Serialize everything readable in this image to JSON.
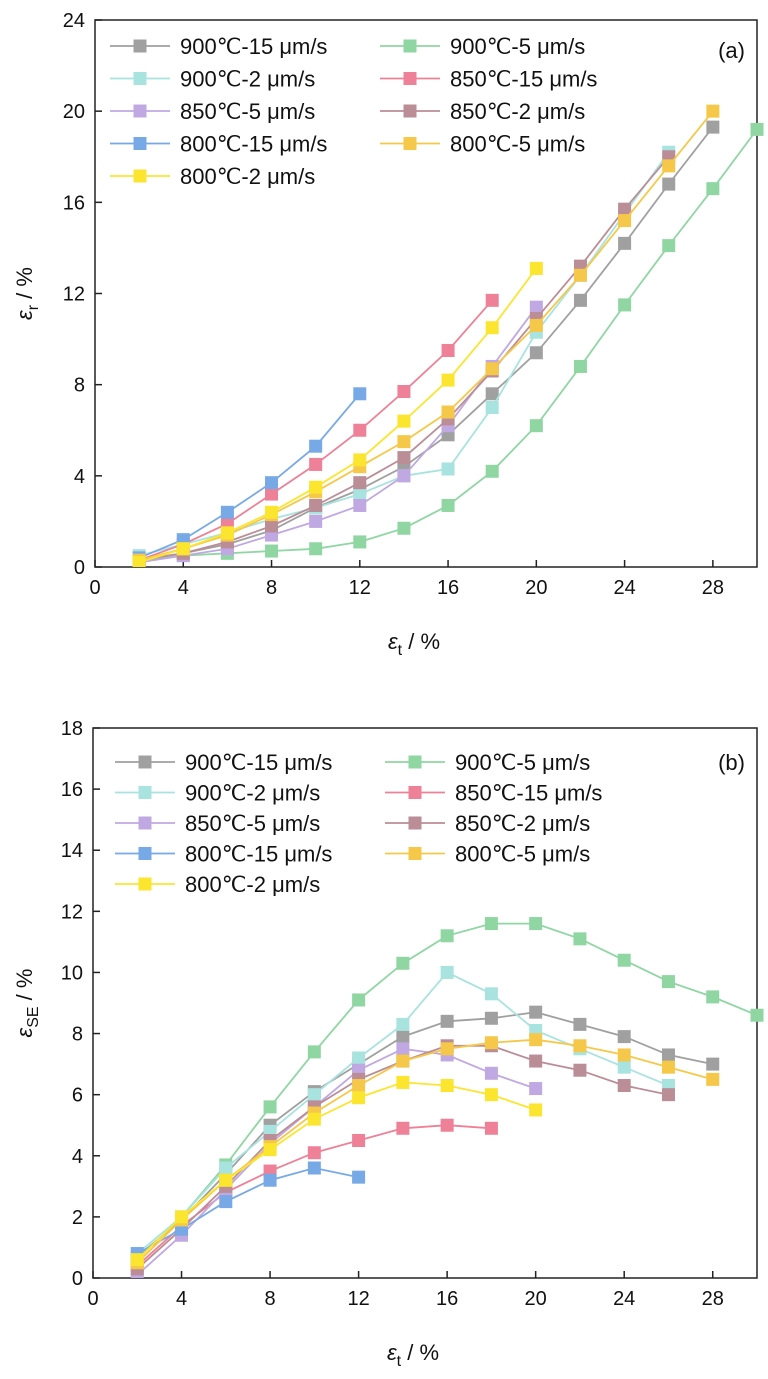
{
  "series_names": [
    "900℃-15 μm/s",
    "900℃-5 μm/s",
    "900℃-2 μm/s",
    "850℃-15 μm/s",
    "850℃-5 μm/s",
    "850℃-2 μm/s",
    "800℃-15 μm/s",
    "800℃-5 μm/s",
    "800℃-2 μm/s"
  ],
  "chart_data": [
    {
      "type": "line",
      "panel_label": "(a)",
      "xlabel": "εt / %",
      "ylabel": "εr / %",
      "xlim": [
        0,
        30
      ],
      "ylim": [
        0,
        24
      ],
      "xticks": [
        0,
        4,
        8,
        12,
        16,
        20,
        24,
        28
      ],
      "yticks": [
        0,
        4,
        8,
        12,
        16,
        20,
        24
      ],
      "grid": false,
      "legend_position": "top, two columns",
      "series": [
        {
          "name": "900℃-15 μm/s",
          "color": "#a0a0a0",
          "x": [
            2,
            4,
            6,
            8,
            10,
            12,
            14,
            16,
            18,
            20,
            22,
            24,
            26,
            28
          ],
          "y": [
            0.3,
            0.6,
            1.0,
            1.6,
            2.6,
            3.4,
            4.4,
            5.8,
            7.6,
            9.4,
            11.7,
            14.2,
            16.8,
            19.3
          ]
        },
        {
          "name": "900℃-5 μm/s",
          "color": "#8fd6a3",
          "x": [
            2,
            4,
            6,
            8,
            10,
            12,
            14,
            16,
            18,
            20,
            22,
            24,
            26,
            28,
            30
          ],
          "y": [
            0.3,
            0.5,
            0.6,
            0.7,
            0.8,
            1.1,
            1.7,
            2.7,
            4.2,
            6.2,
            8.8,
            11.5,
            14.1,
            16.6,
            19.2
          ]
        },
        {
          "name": "900℃-2 μm/s",
          "color": "#a8e3df",
          "x": [
            2,
            4,
            6,
            8,
            10,
            12,
            14,
            16,
            18,
            20,
            22,
            24,
            26
          ],
          "y": [
            0.5,
            1.0,
            1.5,
            2.1,
            2.6,
            3.2,
            4.0,
            4.3,
            7.0,
            10.3,
            12.8,
            15.5,
            18.2
          ]
        },
        {
          "name": "850℃-15 μm/s",
          "color": "#ee8097",
          "x": [
            2,
            4,
            6,
            8,
            10,
            12,
            14,
            16,
            18
          ],
          "y": [
            0.3,
            1.0,
            1.9,
            3.2,
            4.5,
            6.0,
            7.7,
            9.5,
            11.7
          ]
        },
        {
          "name": "850℃-5 μm/s",
          "color": "#c0a8e2",
          "x": [
            2,
            4,
            6,
            8,
            10,
            12,
            14,
            16,
            18,
            20
          ],
          "y": [
            0.2,
            0.5,
            0.8,
            1.4,
            2.0,
            2.7,
            4.0,
            6.2,
            8.8,
            11.4
          ]
        },
        {
          "name": "850℃-2 μm/s",
          "color": "#bb8d96",
          "x": [
            2,
            4,
            6,
            8,
            10,
            12,
            14,
            16,
            18,
            20,
            22,
            24,
            26
          ],
          "y": [
            0.3,
            0.6,
            1.1,
            1.8,
            2.7,
            3.7,
            4.8,
            6.5,
            8.6,
            10.9,
            13.2,
            15.7,
            18.0
          ]
        },
        {
          "name": "800℃-15 μm/s",
          "color": "#77a9e6",
          "x": [
            2,
            4,
            6,
            8,
            10,
            12
          ],
          "y": [
            0.4,
            1.2,
            2.4,
            3.7,
            5.3,
            7.6
          ]
        },
        {
          "name": "800℃-5 μm/s",
          "color": "#f6c84a",
          "x": [
            2,
            4,
            6,
            8,
            10,
            12,
            14,
            16,
            18,
            20,
            22,
            24,
            26,
            28
          ],
          "y": [
            0.3,
            0.8,
            1.4,
            2.3,
            3.3,
            4.4,
            5.5,
            6.8,
            8.7,
            10.6,
            12.8,
            15.2,
            17.6,
            20.0
          ]
        },
        {
          "name": "800℃-2 μm/s",
          "color": "#fbe52f",
          "x": [
            2,
            4,
            6,
            8,
            10,
            12,
            14,
            16,
            18,
            20
          ],
          "y": [
            0.2,
            0.8,
            1.5,
            2.4,
            3.5,
            4.7,
            6.4,
            8.2,
            10.5,
            13.1
          ]
        }
      ]
    },
    {
      "type": "line",
      "panel_label": "(b)",
      "xlabel": "εt / %",
      "ylabel": "εSE / %",
      "xlim": [
        0,
        30
      ],
      "ylim": [
        0,
        18
      ],
      "xticks": [
        0,
        4,
        8,
        12,
        16,
        20,
        24,
        28
      ],
      "yticks": [
        0,
        2,
        4,
        6,
        8,
        10,
        12,
        14,
        16,
        18
      ],
      "grid": false,
      "legend_position": "top, two columns",
      "series": [
        {
          "name": "900℃-15 μm/s",
          "color": "#a0a0a0",
          "x": [
            2,
            4,
            6,
            8,
            10,
            12,
            14,
            16,
            18,
            20,
            22,
            24,
            26,
            28
          ],
          "y": [
            0.7,
            1.9,
            3.4,
            5.0,
            6.1,
            7.0,
            7.9,
            8.4,
            8.5,
            8.7,
            8.3,
            7.9,
            7.3,
            7.0
          ]
        },
        {
          "name": "900℃-5 μm/s",
          "color": "#8fd6a3",
          "x": [
            2,
            4,
            6,
            8,
            10,
            12,
            14,
            16,
            18,
            20,
            22,
            24,
            26,
            28,
            30
          ],
          "y": [
            0.6,
            2.0,
            3.7,
            5.6,
            7.4,
            9.1,
            10.3,
            11.2,
            11.6,
            11.6,
            11.1,
            10.4,
            9.7,
            9.2,
            8.6
          ]
        },
        {
          "name": "900℃-2 μm/s",
          "color": "#a8e3df",
          "x": [
            2,
            4,
            6,
            8,
            10,
            12,
            14,
            16,
            18,
            20,
            22,
            24,
            26
          ],
          "y": [
            0.8,
            2.0,
            3.6,
            4.8,
            6.0,
            7.2,
            8.3,
            10.0,
            9.3,
            8.1,
            7.5,
            6.9,
            6.3
          ]
        },
        {
          "name": "850℃-15 μm/s",
          "color": "#ee8097",
          "x": [
            2,
            4,
            6,
            8,
            10,
            12,
            14,
            16,
            18
          ],
          "y": [
            0.4,
            1.7,
            2.8,
            3.5,
            4.1,
            4.5,
            4.9,
            5.0,
            4.9
          ]
        },
        {
          "name": "850℃-5 μm/s",
          "color": "#c0a8e2",
          "x": [
            2,
            4,
            6,
            8,
            10,
            12,
            14,
            16,
            18,
            20
          ],
          "y": [
            0.1,
            1.4,
            2.9,
            4.4,
            5.6,
            6.8,
            7.5,
            7.3,
            6.7,
            6.2
          ]
        },
        {
          "name": "850℃-2 μm/s",
          "color": "#bb8d96",
          "x": [
            2,
            4,
            6,
            8,
            10,
            12,
            14,
            16,
            18,
            20,
            22,
            24,
            26
          ],
          "y": [
            0.3,
            1.6,
            3.0,
            4.5,
            5.6,
            6.5,
            7.1,
            7.6,
            7.6,
            7.1,
            6.8,
            6.3,
            6.0
          ]
        },
        {
          "name": "800℃-15 μm/s",
          "color": "#77a9e6",
          "x": [
            2,
            4,
            6,
            8,
            10,
            12
          ],
          "y": [
            0.8,
            1.6,
            2.5,
            3.2,
            3.6,
            3.3
          ]
        },
        {
          "name": "800℃-5 μm/s",
          "color": "#f6c84a",
          "x": [
            2,
            4,
            6,
            8,
            10,
            12,
            14,
            16,
            18,
            20,
            22,
            24,
            26,
            28
          ],
          "y": [
            0.5,
            1.9,
            3.2,
            4.3,
            5.4,
            6.3,
            7.1,
            7.5,
            7.7,
            7.8,
            7.6,
            7.3,
            6.9,
            6.5
          ]
        },
        {
          "name": "800℃-2 μm/s",
          "color": "#fbe52f",
          "x": [
            2,
            4,
            6,
            8,
            10,
            12,
            14,
            16,
            18,
            20
          ],
          "y": [
            0.6,
            2.0,
            3.2,
            4.2,
            5.2,
            5.9,
            6.4,
            6.3,
            6.0,
            5.5
          ]
        }
      ]
    }
  ]
}
